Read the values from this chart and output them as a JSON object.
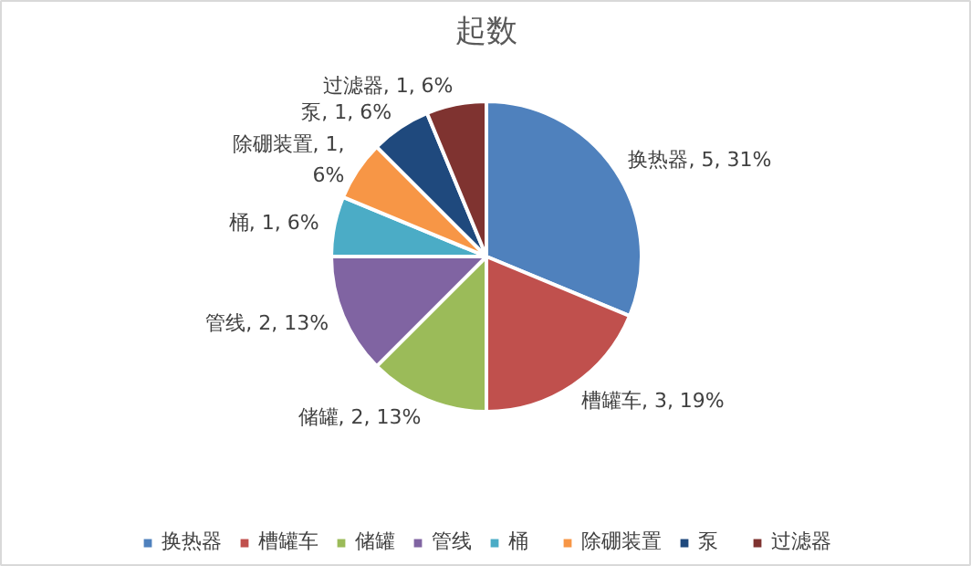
{
  "chart_data": {
    "type": "pie",
    "title": "起数",
    "categories": [
      "换热器",
      "槽罐车",
      "储罐",
      "管线",
      "桶",
      "除硼装置",
      "泵",
      "过滤器"
    ],
    "values": [
      5,
      3,
      2,
      2,
      1,
      1,
      1,
      1
    ],
    "colors": [
      "#4f81bd",
      "#c0504d",
      "#9bbb59",
      "#8064a2",
      "#4bacc6",
      "#f79646",
      "#1f497d",
      "#7f3330"
    ],
    "value_labels": [
      "换热器, 5, 31%",
      "槽罐车, 3, 19%",
      "储罐, 2, 13%",
      "管线, 2, 13%",
      "桶, 1, 6%",
      "除硼装置, 1,\n6%",
      "泵, 1, 6%",
      "过滤器, 1, 6%"
    ],
    "legend": "bottom"
  }
}
